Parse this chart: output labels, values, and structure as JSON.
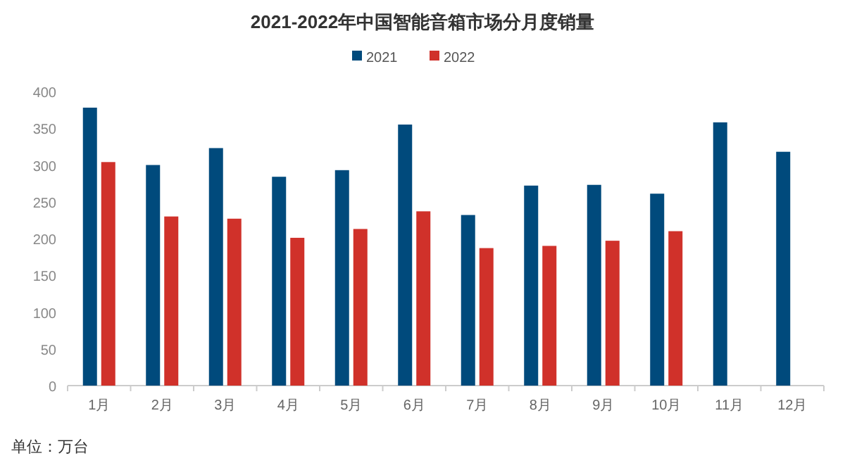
{
  "chart_data": {
    "type": "bar",
    "title": "2021-2022年中国智能音箱市场分月度销量",
    "categories": [
      "1月",
      "2月",
      "3月",
      "4月",
      "5月",
      "6月",
      "7月",
      "8月",
      "9月",
      "10月",
      "11月",
      "12月"
    ],
    "series": [
      {
        "name": "2021",
        "color": "#004a7c",
        "values": [
          378,
          300,
          323,
          284,
          293,
          355,
          232,
          272,
          273,
          261,
          358,
          318
        ]
      },
      {
        "name": "2022",
        "color": "#d0312a",
        "values": [
          304,
          230,
          227,
          201,
          213,
          237,
          187,
          190,
          197,
          210,
          null,
          null
        ]
      }
    ],
    "ylim": [
      0,
      400
    ],
    "yticks": [
      0,
      50,
      100,
      150,
      200,
      250,
      300,
      350,
      400
    ],
    "grid": false,
    "legend": "top",
    "annotations": [
      "单位：万台"
    ]
  }
}
